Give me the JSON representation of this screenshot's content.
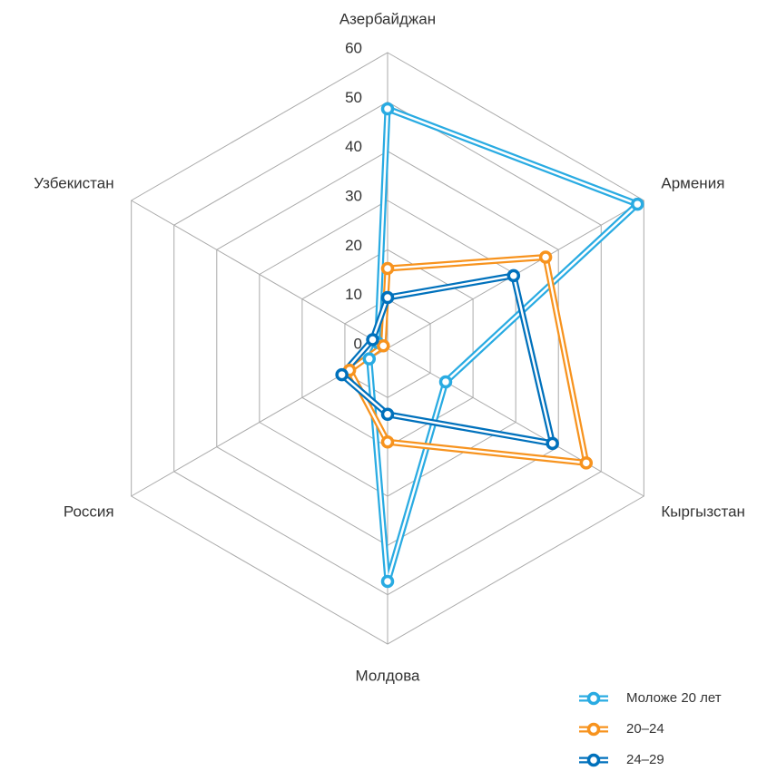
{
  "chart_data": {
    "type": "radar",
    "categories": [
      "Азербайджан",
      "Армения",
      "Кыргызстан",
      "Молдова",
      "Россия",
      "Узбекистан"
    ],
    "series": [
      {
        "name": "Моложе 20 лет",
        "color": "#29abe2",
        "values": [
          48.6,
          58.5,
          13.6,
          47.3,
          4.3,
          2.4
        ]
      },
      {
        "name": "20–24",
        "color": "#f7931e",
        "values": [
          16.2,
          37,
          46.5,
          19,
          8.9,
          1
        ]
      },
      {
        "name": "24–29",
        "color": "#0071bc",
        "values": [
          10.3,
          29.5,
          38.6,
          13.4,
          10.7,
          3.5
        ]
      }
    ],
    "ylim": [
      0,
      60
    ],
    "yticks": [
      0,
      10,
      20,
      30,
      40,
      50,
      60
    ],
    "grid": true
  }
}
